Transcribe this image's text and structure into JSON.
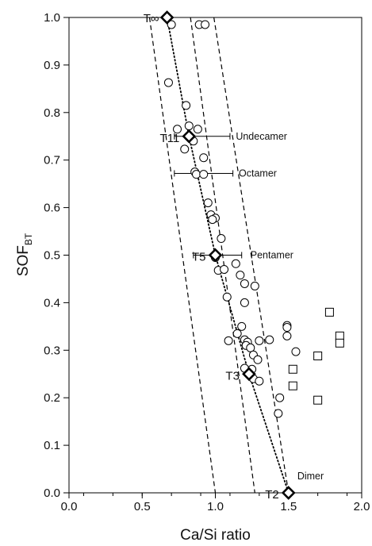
{
  "chart_data": {
    "type": "scatter",
    "xlabel": "Ca/Si ratio",
    "ylabel": {
      "main": "SOF",
      "sub": "BT"
    },
    "xlim": [
      0.0,
      2.0
    ],
    "ylim": [
      0.0,
      1.0
    ],
    "x_ticks": [
      "0.0",
      "0.5",
      "1.0",
      "1.5",
      "2.0"
    ],
    "y_ticks": [
      "0.0",
      "0.1",
      "0.2",
      "0.3",
      "0.4",
      "0.5",
      "0.6",
      "0.7",
      "0.8",
      "0.9",
      "1.0"
    ],
    "x_tick_values": [
      0.0,
      0.5,
      1.0,
      1.5,
      2.0
    ],
    "y_tick_values": [
      0.0,
      0.1,
      0.2,
      0.3,
      0.4,
      0.5,
      0.6,
      0.7,
      0.8,
      0.9,
      1.0
    ],
    "grid": false,
    "series": [
      {
        "marker": "circle",
        "points": [
          [
            0.7,
            0.985
          ],
          [
            0.89,
            0.985
          ],
          [
            0.93,
            0.985
          ],
          [
            0.68,
            0.863
          ],
          [
            0.8,
            0.815
          ],
          [
            0.74,
            0.765
          ],
          [
            0.82,
            0.772
          ],
          [
            0.88,
            0.765
          ],
          [
            0.85,
            0.74
          ],
          [
            0.79,
            0.723
          ],
          [
            0.92,
            0.705
          ],
          [
            0.86,
            0.675
          ],
          [
            0.87,
            0.67
          ],
          [
            0.92,
            0.67
          ],
          [
            0.95,
            0.61
          ],
          [
            0.97,
            0.585
          ],
          [
            1.0,
            0.578
          ],
          [
            0.98,
            0.575
          ],
          [
            1.04,
            0.535
          ],
          [
            1.0,
            0.495
          ],
          [
            1.02,
            0.468
          ],
          [
            1.06,
            0.47
          ],
          [
            1.14,
            0.482
          ],
          [
            1.17,
            0.458
          ],
          [
            1.2,
            0.44
          ],
          [
            1.27,
            0.435
          ],
          [
            1.08,
            0.412
          ],
          [
            1.2,
            0.4
          ],
          [
            1.18,
            0.35
          ],
          [
            1.15,
            0.335
          ],
          [
            1.09,
            0.32
          ],
          [
            1.2,
            0.322
          ],
          [
            1.22,
            0.317
          ],
          [
            1.21,
            0.31
          ],
          [
            1.24,
            0.305
          ],
          [
            1.3,
            0.32
          ],
          [
            1.2,
            0.262
          ],
          [
            1.25,
            0.26
          ],
          [
            1.26,
            0.29
          ],
          [
            1.29,
            0.28
          ],
          [
            1.26,
            0.24
          ],
          [
            1.3,
            0.235
          ],
          [
            1.37,
            0.322
          ],
          [
            1.49,
            0.352
          ],
          [
            1.49,
            0.348
          ],
          [
            1.49,
            0.33
          ],
          [
            1.55,
            0.297
          ],
          [
            1.44,
            0.2
          ],
          [
            1.43,
            0.167
          ]
        ]
      },
      {
        "marker": "square",
        "points": [
          [
            1.78,
            0.38
          ],
          [
            1.85,
            0.33
          ],
          [
            1.85,
            0.315
          ],
          [
            1.7,
            0.288
          ],
          [
            1.53,
            0.26
          ],
          [
            1.53,
            0.225
          ],
          [
            1.7,
            0.195
          ]
        ]
      },
      {
        "marker": "diamond",
        "points": [
          [
            0.67,
            1.0
          ],
          [
            0.82,
            0.75
          ],
          [
            1.0,
            0.5
          ],
          [
            1.23,
            0.25
          ],
          [
            1.5,
            0.0
          ]
        ]
      }
    ],
    "lines": [
      {
        "style": "dotted",
        "points": [
          [
            0.67,
            1.0
          ],
          [
            0.82,
            0.75
          ],
          [
            1.0,
            0.5
          ],
          [
            1.23,
            0.25
          ],
          [
            1.5,
            0.0
          ]
        ]
      },
      {
        "style": "dashed",
        "points": [
          [
            0.55,
            1.0
          ],
          [
            1.0,
            0.0
          ]
        ]
      },
      {
        "style": "dashed",
        "points": [
          [
            0.83,
            1.0
          ],
          [
            1.27,
            0.0
          ]
        ]
      },
      {
        "style": "dashed",
        "points": [
          [
            0.99,
            1.0
          ],
          [
            1.5,
            0.0
          ]
        ]
      }
    ],
    "annotations": {
      "t_inf": "T∞",
      "t11": "T11",
      "t5": "T5",
      "t3": "T3",
      "t2": "T2",
      "undecamer": "Undecamer",
      "octamer": "Octamer",
      "pentamer": "Pentamer",
      "dimer": "Dimer"
    },
    "ranges": [
      {
        "y": 1.0,
        "x1": 0.0,
        "x2": 0.67
      },
      {
        "y": 0.75,
        "x1": 0.72,
        "x2": 1.1
      },
      {
        "y": 0.672,
        "x1": 0.72,
        "x2": 1.12
      },
      {
        "y": 0.5,
        "x1": 0.85,
        "x2": 1.18
      }
    ]
  }
}
